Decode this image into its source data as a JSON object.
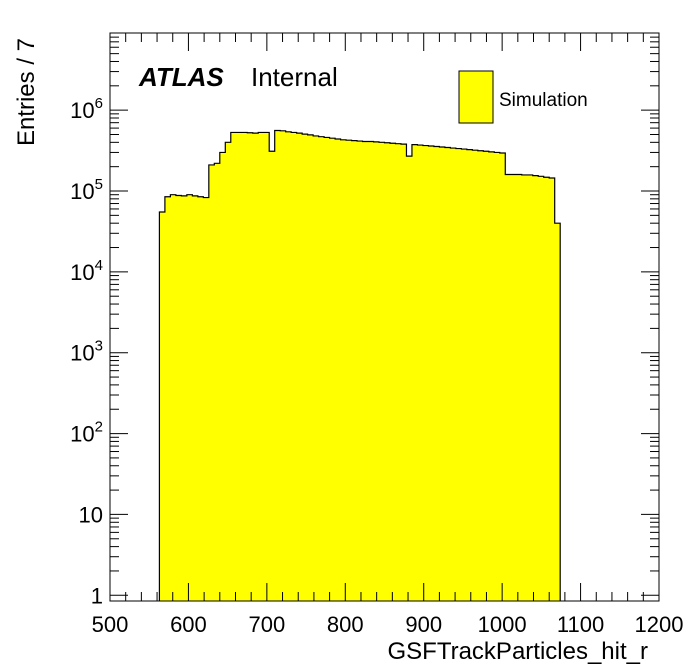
{
  "chart_data": {
    "type": "bar",
    "xlabel": "GSFTrackParticles_hit_r",
    "ylabel": "Entries / 7",
    "xlim": [
      500,
      1200
    ],
    "ylim": [
      0.85,
      9000000
    ],
    "yscale": "log",
    "bin_width": 7,
    "x_ticks": [
      {
        "value": 500,
        "label": "500"
      },
      {
        "value": 600,
        "label": "600"
      },
      {
        "value": 700,
        "label": "700"
      },
      {
        "value": 800,
        "label": "800"
      },
      {
        "value": 900,
        "label": "900"
      },
      {
        "value": 1000,
        "label": "1000"
      },
      {
        "value": 1100,
        "label": "1100"
      },
      {
        "value": 1200,
        "label": "1200"
      }
    ],
    "y_ticks": [
      {
        "value": 1,
        "base": "1",
        "exp": ""
      },
      {
        "value": 10,
        "base": "10",
        "exp": ""
      },
      {
        "value": 100,
        "base": "10",
        "exp": "2"
      },
      {
        "value": 1000,
        "base": "10",
        "exp": "3"
      },
      {
        "value": 10000,
        "base": "10",
        "exp": "4"
      },
      {
        "value": 100000,
        "base": "10",
        "exp": "5"
      },
      {
        "value": 1000000,
        "base": "10",
        "exp": "6"
      }
    ],
    "series": [
      {
        "name": "Simulation",
        "color": "#ffff00",
        "edges": [
          563,
          570,
          577,
          584,
          591,
          598,
          605,
          612,
          619,
          626,
          633,
          640,
          647,
          654,
          661,
          668,
          675,
          682,
          689,
          696,
          703,
          710,
          717,
          724,
          731,
          738,
          745,
          752,
          759,
          766,
          773,
          780,
          787,
          794,
          801,
          808,
          815,
          822,
          829,
          836,
          843,
          850,
          857,
          864,
          871,
          878,
          885,
          892,
          899,
          906,
          913,
          920,
          927,
          934,
          941,
          948,
          955,
          962,
          969,
          976,
          983,
          990,
          997,
          1004,
          1011,
          1018,
          1025,
          1032,
          1039,
          1046,
          1053,
          1060,
          1067,
          1074
        ],
        "values": [
          55000,
          85000,
          90000,
          88000,
          87000,
          90000,
          87000,
          85000,
          83000,
          210000,
          220000,
          300000,
          400000,
          530000,
          530000,
          530000,
          525000,
          520000,
          530000,
          530000,
          310000,
          560000,
          555000,
          540000,
          530000,
          520000,
          505000,
          495000,
          480000,
          470000,
          460000,
          450000,
          440000,
          430000,
          425000,
          420000,
          415000,
          410000,
          410000,
          405000,
          400000,
          395000,
          390000,
          385000,
          380000,
          270000,
          375000,
          370000,
          365000,
          360000,
          355000,
          350000,
          345000,
          340000,
          335000,
          330000,
          325000,
          320000,
          315000,
          310000,
          305000,
          300000,
          295000,
          160000,
          160000,
          160000,
          158000,
          158000,
          155000,
          152000,
          148000,
          145000,
          40000
        ]
      }
    ],
    "annotations": [
      {
        "bold_text": "ATLAS",
        "text": "Internal"
      }
    ],
    "legend": {
      "position": "top-right",
      "entries": [
        {
          "label": "Simulation",
          "color": "#ffff00"
        }
      ]
    },
    "grid": false
  }
}
